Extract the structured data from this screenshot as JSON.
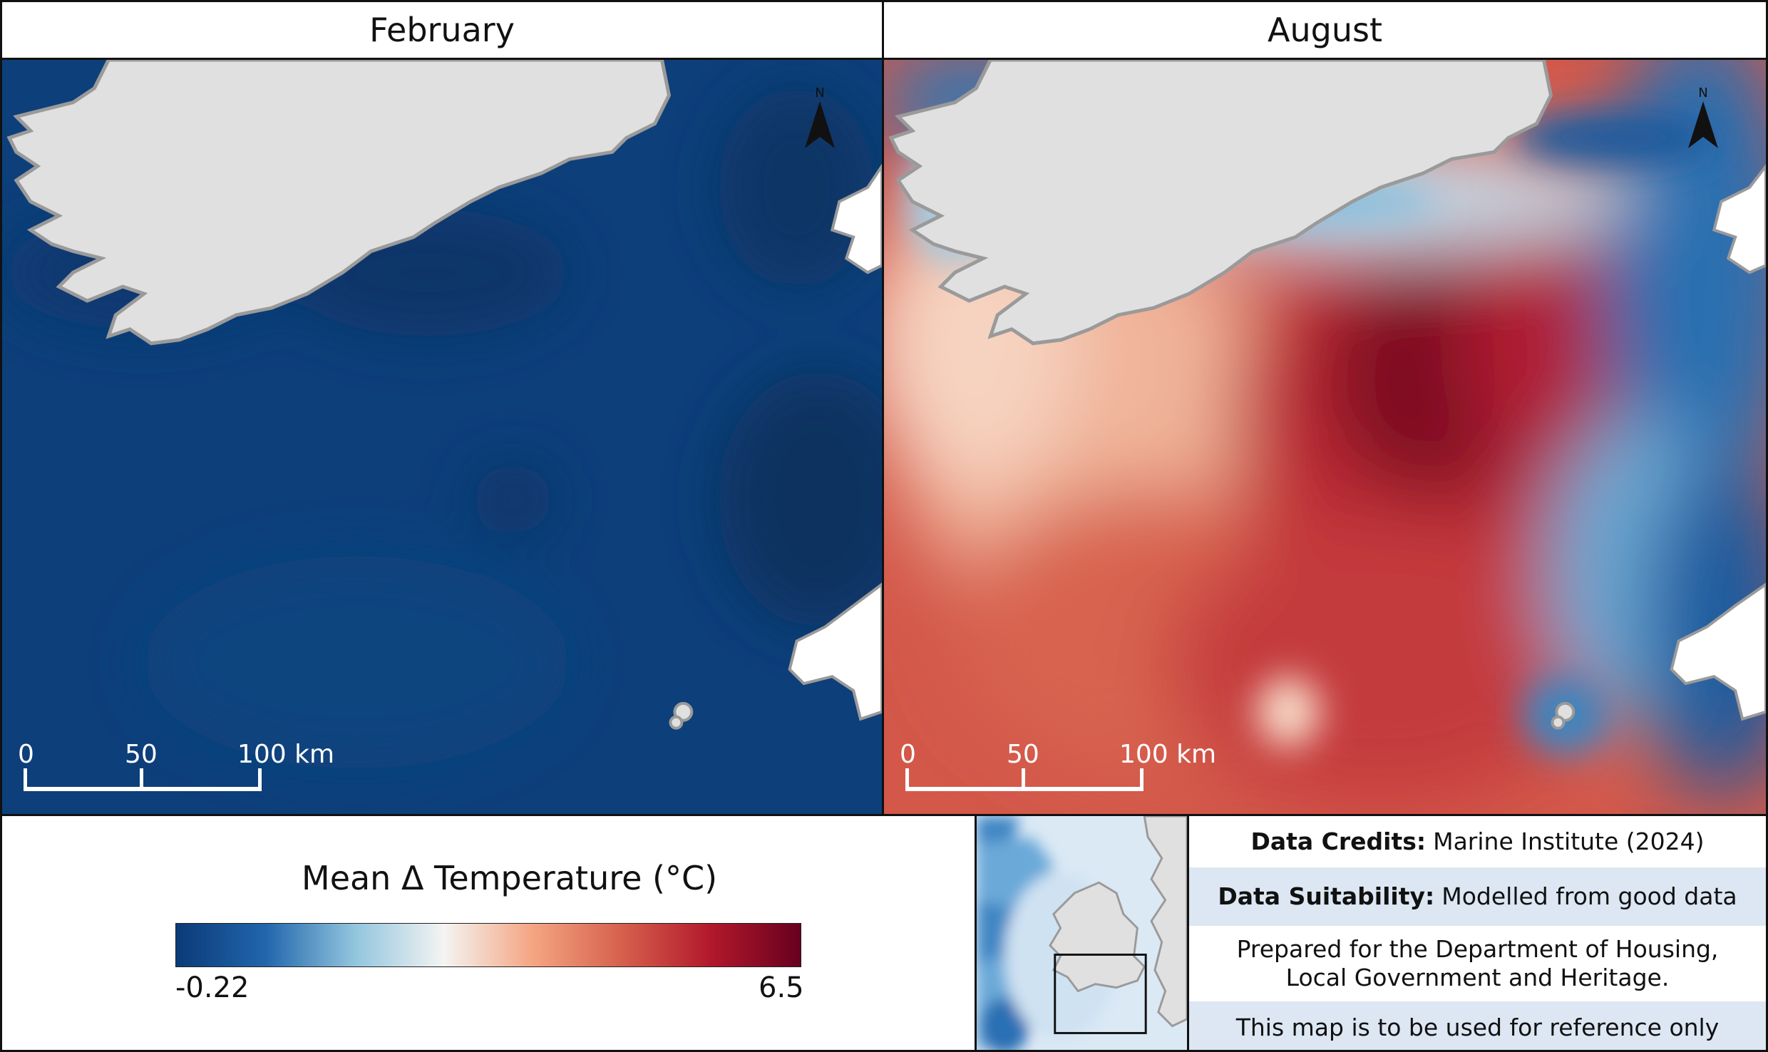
{
  "panels": [
    {
      "title": "February"
    },
    {
      "title": "August"
    }
  ],
  "scale_bar": {
    "labels": [
      "0",
      "50",
      "100 km"
    ]
  },
  "north_arrow": {
    "label": "N",
    "icon": "north-arrow-icon"
  },
  "legend": {
    "title": "Mean Δ Temperature (°C)",
    "min_label": "-0.22",
    "max_label": "6.5",
    "min": -0.22,
    "max": 6.5,
    "colors": [
      "#0b3a78",
      "#2166ac",
      "#92c5de",
      "#f4f4f2",
      "#f4a582",
      "#d6604d",
      "#b2182b",
      "#67001f"
    ]
  },
  "credits": {
    "data_credits_label": "Data Credits:",
    "data_credits_value": "Marine Institute (2024)",
    "suitability_label": "Data Suitability:",
    "suitability_value": "Modelled from good data",
    "prepared_line1": "Prepared for the Department of Housing,",
    "prepared_line2": "Local Government and Heritage.",
    "reference_note": "This map is to be used for reference only"
  },
  "colors": {
    "land": "#e0e0e0",
    "coastline": "#9a9a9a",
    "february_sea": "#0d3f7a",
    "frame": "#111111"
  }
}
